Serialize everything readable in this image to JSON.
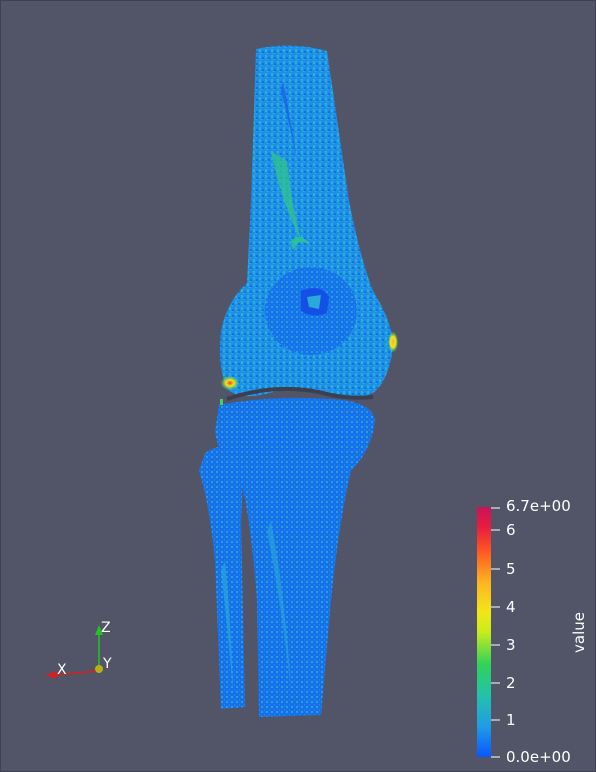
{
  "viewer": {
    "background": "#525468"
  },
  "colorbar": {
    "title": "value",
    "max_label": "6.7e+00",
    "min_label": "0.0e+00",
    "ticks": [
      "6",
      "5",
      "4",
      "3",
      "2",
      "1"
    ],
    "range": [
      0.0,
      6.7
    ],
    "colormap": [
      "#0a55ff",
      "#1f9ce6",
      "#22c3a8",
      "#30d25a",
      "#e8f01a",
      "#ffb320",
      "#ff5a22",
      "#e81c3e",
      "#c8145a"
    ]
  },
  "orientation_axes": {
    "x_label": "X",
    "y_label": "Y",
    "z_label": "Z",
    "x_color": "#d42020",
    "y_color": "#c8c800",
    "z_color": "#22c422"
  },
  "model": {
    "description_colors": {
      "base": "#1e90e8",
      "light": "#2aa8d8",
      "dark": "#1468e0",
      "hotspot_high": "#ff3a1c",
      "hotspot_mid": "#f2e61a",
      "hotspot_low": "#3fd26a"
    }
  }
}
